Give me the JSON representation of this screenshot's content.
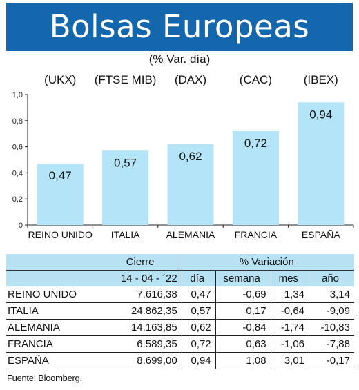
{
  "title": "Bolsas Europeas",
  "subtitle": "(% Var. día)",
  "chart_data": {
    "type": "bar",
    "categories": [
      "REINO UNIDO",
      "ITALIA",
      "ALEMANIA",
      "FRANCIA",
      "ESPAÑA"
    ],
    "indices": [
      "(UKX)",
      "(FTSE MIB)",
      "(DAX)",
      "(CAC)",
      "(IBEX)"
    ],
    "values": [
      0.47,
      0.57,
      0.62,
      0.72,
      0.94
    ],
    "value_labels": [
      "0,47",
      "0,57",
      "0,62",
      "0,72",
      "0,94"
    ],
    "ylim": [
      0,
      1.0
    ],
    "yticks": [
      0,
      0.2,
      0.4,
      0.6,
      0.8,
      1.0
    ],
    "ytick_labels": [
      "0",
      "0,2",
      "0,4",
      "0,6",
      "0,8",
      "1,0"
    ],
    "bar_color": "#b3e4f7",
    "grid": false
  },
  "table": {
    "group_headers": [
      "Cierre",
      "% Variación"
    ],
    "columns": [
      "14 - 04 - ´22",
      "día",
      "semana",
      "mes",
      "año"
    ],
    "rows": [
      {
        "name": "REINO UNIDO",
        "values": [
          "7.616,38",
          "0,47",
          "-0,69",
          "1,34",
          "3,14"
        ]
      },
      {
        "name": "ITALIA",
        "values": [
          "24.862,35",
          "0,57",
          "0,17",
          "-0,64",
          "-9,09"
        ]
      },
      {
        "name": "ALEMANIA",
        "values": [
          "14.163,85",
          "0,62",
          "-0,84",
          "-1,74",
          "-10,83"
        ]
      },
      {
        "name": "FRANCIA",
        "values": [
          "6.589,35",
          "0,72",
          "0,63",
          "-1,06",
          "-7,88"
        ]
      },
      {
        "name": "ESPAÑA",
        "values": [
          "8.699,00",
          "0,94",
          "1,08",
          "3,01",
          "-0,17"
        ]
      }
    ],
    "header_color": "#b7e2f4"
  },
  "source": "Fuente: Bloomberg."
}
